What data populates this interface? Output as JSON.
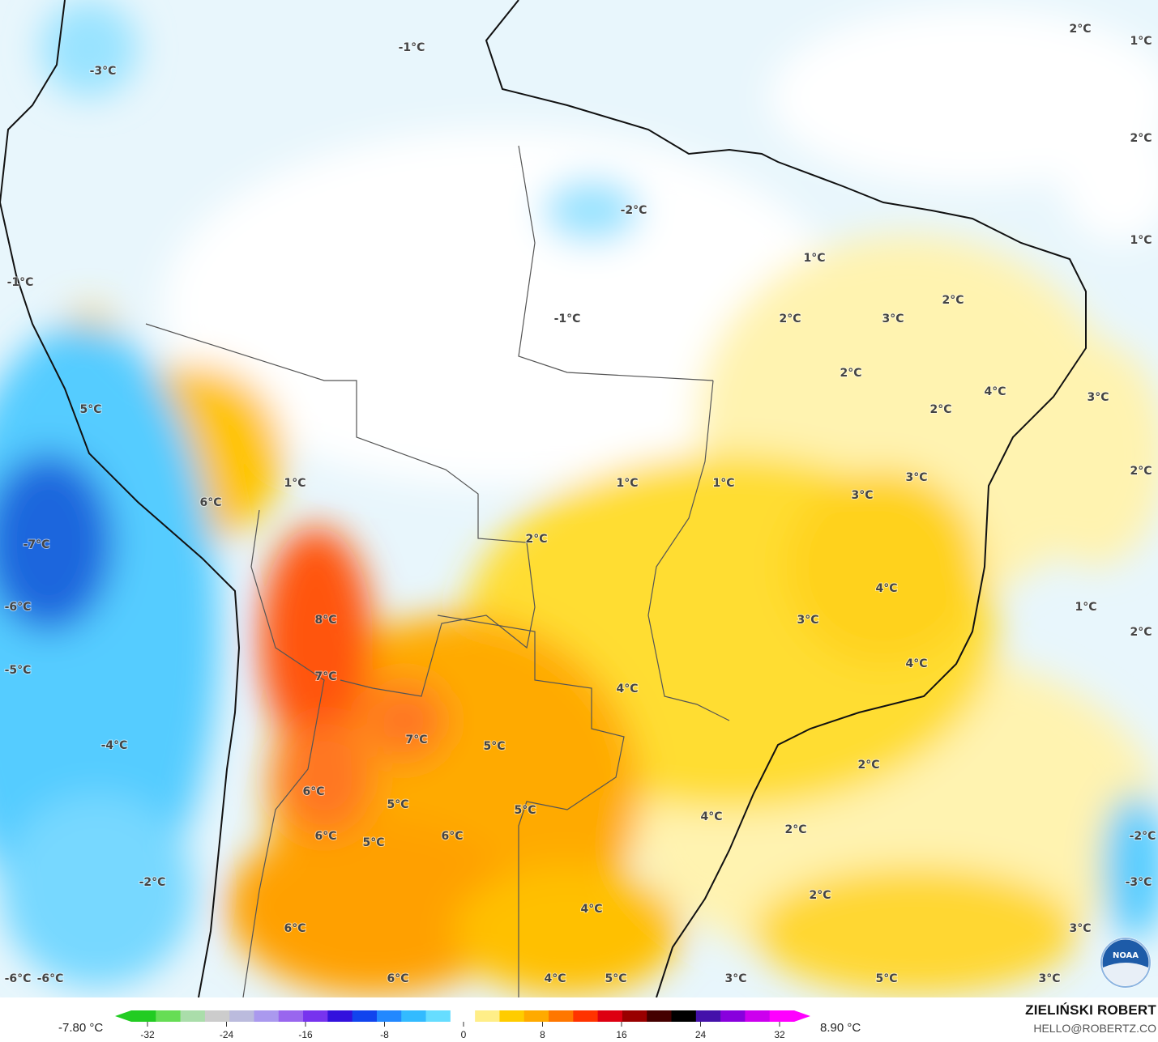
{
  "map": {
    "labels": [
      "1°C",
      "2°C",
      "-1°C",
      "-3°C",
      "2°C",
      "-2°C",
      "1°C",
      "1°C",
      "-1°C",
      "2°C",
      "2°C",
      "3°C",
      "-1°C",
      "2°C",
      "4°C",
      "3°C",
      "2°C",
      "5°C",
      "2°C",
      "3°C",
      "1°C",
      "1°C",
      "1°C",
      "3°C",
      "6°C",
      "2°C",
      "-7°C",
      "4°C",
      "1°C",
      "-6°C",
      "3°C",
      "8°C",
      "2°C",
      "4°C",
      "-5°C",
      "7°C",
      "4°C",
      "7°C",
      "5°C",
      "-4°C",
      "2°C",
      "6°C",
      "5°C",
      "5°C",
      "4°C",
      "2°C",
      "6°C",
      "5°C",
      "6°C",
      "-2°C",
      "-2°C",
      "-3°C",
      "2°C",
      "4°C",
      "3°C",
      "6°C",
      "-6°C",
      "-6°C",
      "6°C",
      "4°C",
      "5°C",
      "3°C",
      "5°C",
      "3°C"
    ],
    "logo": "NOAA"
  },
  "legend": {
    "min_value": "-7.80 °C",
    "max_value": "8.90 °C",
    "ticks": [
      "-32",
      "-24",
      "-16",
      "-8",
      "0",
      "8",
      "16",
      "24",
      "32"
    ],
    "colors": [
      "#22cc22",
      "#66dd55",
      "#aaddaa",
      "#cccccc",
      "#bbbbdd",
      "#aa99ee",
      "#9966ee",
      "#7733ee",
      "#3311dd",
      "#1144ee",
      "#2288ff",
      "#33bbff",
      "#66ddff",
      "#ffffff",
      "#ffee88",
      "#ffcc00",
      "#ffaa00",
      "#ff7700",
      "#ff3300",
      "#dd0011",
      "#990000",
      "#440000",
      "#000000",
      "#4411aa",
      "#8800dd",
      "#cc00ee",
      "#ff00ff"
    ]
  },
  "credit": {
    "name": "ZIELIŃSKI ROBERT",
    "email": "HELLO@ROBERTZ.CO"
  }
}
